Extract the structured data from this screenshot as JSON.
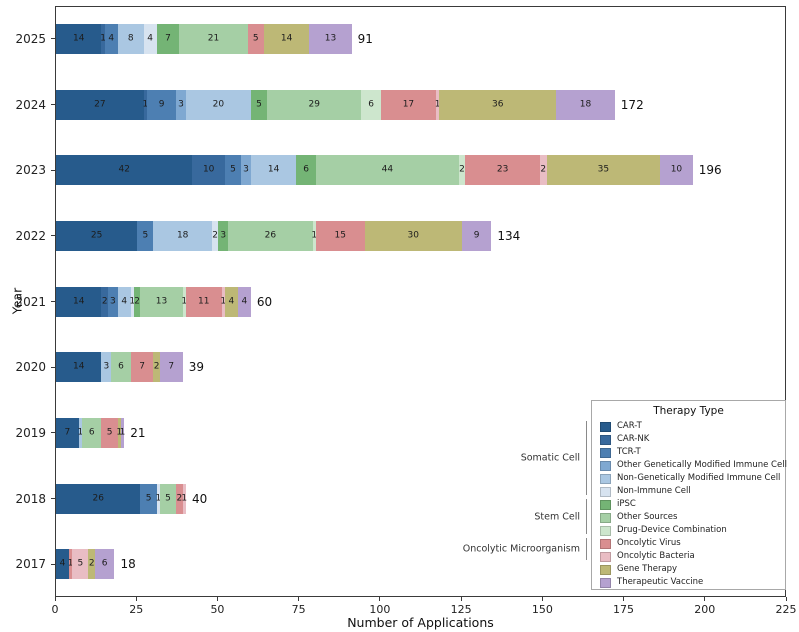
{
  "chart_data": {
    "type": "bar",
    "orientation": "horizontal",
    "xlabel": "Number of Applications",
    "ylabel": "Year",
    "xlim": [
      0,
      225
    ],
    "xticks": [
      0,
      25,
      50,
      75,
      100,
      125,
      150,
      175,
      200,
      225
    ],
    "grid": false,
    "categories": [
      "2025",
      "2024",
      "2023",
      "2022",
      "2021",
      "2020",
      "2019",
      "2018",
      "2017"
    ],
    "totals": [
      91,
      172,
      196,
      134,
      60,
      39,
      21,
      40,
      18
    ],
    "series": [
      {
        "name": "CAR-T",
        "color": "#275b8c",
        "values": [
          14,
          27,
          42,
          25,
          14,
          14,
          7,
          26,
          4
        ]
      },
      {
        "name": "CAR-NK",
        "color": "#38699d",
        "values": [
          1,
          1,
          10,
          0,
          2,
          0,
          0,
          0,
          0
        ]
      },
      {
        "name": "TCR-T",
        "color": "#4d7fb2",
        "values": [
          4,
          9,
          5,
          5,
          3,
          0,
          0,
          5,
          0
        ]
      },
      {
        "name": "Other Genetically Modified Immune Cell",
        "color": "#7fa8d1",
        "values": [
          0,
          3,
          3,
          0,
          0,
          0,
          0,
          0,
          0
        ]
      },
      {
        "name": "Non-Genetically Modified Immune Cell",
        "color": "#aac7e2",
        "values": [
          8,
          20,
          14,
          18,
          4,
          3,
          1,
          0,
          0
        ]
      },
      {
        "name": "Non-Immune Cell",
        "color": "#d7e3f0",
        "values": [
          4,
          0,
          0,
          2,
          1,
          0,
          0,
          1,
          0
        ]
      },
      {
        "name": "iPSC",
        "color": "#74b475",
        "values": [
          7,
          5,
          6,
          3,
          2,
          0,
          0,
          0,
          0
        ]
      },
      {
        "name": "Other Sources",
        "color": "#a5cfa5",
        "values": [
          21,
          29,
          44,
          26,
          13,
          6,
          6,
          5,
          0
        ]
      },
      {
        "name": "Drug-Device Combination",
        "color": "#cde6cd",
        "values": [
          0,
          6,
          2,
          1,
          1,
          0,
          0,
          0,
          0
        ]
      },
      {
        "name": "Oncolytic Virus",
        "color": "#d98e90",
        "values": [
          5,
          17,
          23,
          15,
          11,
          7,
          5,
          2,
          1
        ]
      },
      {
        "name": "Oncolytic Bacteria",
        "color": "#e9bdc4",
        "values": [
          0,
          1,
          2,
          0,
          1,
          0,
          0,
          1,
          5
        ]
      },
      {
        "name": "Gene Therapy",
        "color": "#bdb876",
        "values": [
          14,
          36,
          35,
          30,
          4,
          2,
          1,
          0,
          2
        ]
      },
      {
        "name": "Therapeutic Vaccine",
        "color": "#b5a1d0",
        "values": [
          13,
          18,
          10,
          9,
          4,
          7,
          1,
          0,
          6
        ]
      }
    ],
    "legend": {
      "title": "Therapy Type",
      "position": "lower right",
      "groups": [
        {
          "label": "Somatic Cell",
          "start": 0,
          "end": 5
        },
        {
          "label": "Stem Cell",
          "start": 6,
          "end": 8
        },
        {
          "label": "Oncolytic Microorganism",
          "start": 9,
          "end": 10
        }
      ]
    }
  }
}
